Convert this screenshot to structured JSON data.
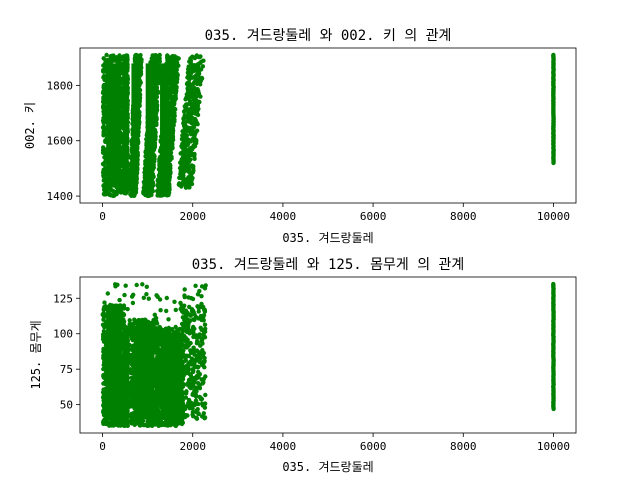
{
  "chart_data": [
    {
      "type": "scatter",
      "title": "035. 겨드랑둘레  와 002. 키 의 관계",
      "xlabel": "035. 겨드랑둘레",
      "ylabel": "002. 키",
      "xlim": [
        -500,
        10500
      ],
      "ylim": [
        1375,
        1935
      ],
      "xticks": [
        0,
        2000,
        4000,
        6000,
        8000,
        10000
      ],
      "yticks": [
        1400,
        1600,
        1800
      ],
      "xtick_labels": [
        "0",
        "2000",
        "4000",
        "6000",
        "8000",
        "10000"
      ],
      "ytick_labels": [
        "1400",
        "1600",
        "1800"
      ],
      "grid": false,
      "color": "#008000",
      "clusters": [
        {
          "x": [
            10,
            480
          ],
          "y": [
            1400,
            1910
          ],
          "fill": 1.0
        },
        {
          "x": [
            480,
            560
          ],
          "y": [
            1410,
            1910
          ],
          "fill": 0.6
        },
        {
          "x": [
            600,
            870
          ],
          "y": [
            1400,
            1910
          ],
          "slope": 0.55,
          "fill": 0.95
        },
        {
          "x": [
            900,
            1280
          ],
          "y": [
            1400,
            1910
          ],
          "slope": 0.6,
          "fill": 0.95
        },
        {
          "x": [
            1200,
            1700
          ],
          "y": [
            1400,
            1910
          ],
          "slope": 0.7,
          "fill": 0.9
        },
        {
          "x": [
            1650,
            2260
          ],
          "y": [
            1430,
            1910
          ],
          "slope": 1.0,
          "fill": 0.55
        }
      ],
      "outlier_column": {
        "x": 10000,
        "y": [
          1520,
          1910
        ]
      }
    },
    {
      "type": "scatter",
      "title": "035. 겨드랑둘레  와 125. 몸무게 의 관계",
      "xlabel": "035. 겨드랑둘레",
      "ylabel": "125. 몸무게",
      "xlim": [
        -500,
        10500
      ],
      "ylim": [
        30,
        140
      ],
      "xticks": [
        0,
        2000,
        4000,
        6000,
        8000,
        10000
      ],
      "yticks": [
        50,
        75,
        100,
        125
      ],
      "xtick_labels": [
        "0",
        "2000",
        "4000",
        "6000",
        "8000",
        "10000"
      ],
      "ytick_labels": [
        "50",
        "75",
        "100",
        "125"
      ],
      "grid": false,
      "color": "#008000",
      "clusters": [
        {
          "x": [
            10,
            480
          ],
          "y": [
            35,
            120
          ],
          "fill": 1.0
        },
        {
          "x": [
            480,
            560
          ],
          "y": [
            35,
            105
          ],
          "fill": 0.5
        },
        {
          "x": [
            600,
            1250
          ],
          "y": [
            35,
            110
          ],
          "fill": 0.95
        },
        {
          "x": [
            1200,
            1800
          ],
          "y": [
            35,
            105
          ],
          "fill": 0.85
        },
        {
          "x": [
            1750,
            2280
          ],
          "y": [
            40,
            120
          ],
          "fill": 0.4
        }
      ],
      "sparse_top": {
        "x": [
          0,
          2300
        ],
        "y": [
          110,
          135
        ]
      },
      "outlier_column": {
        "x": 10000,
        "y": [
          47,
          135
        ]
      }
    }
  ]
}
